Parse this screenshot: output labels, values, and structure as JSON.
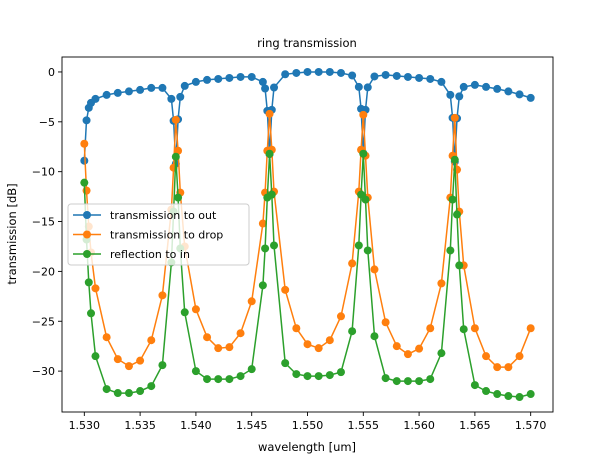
{
  "chart_data": {
    "type": "line",
    "title": "ring transmission",
    "xlabel": "wavelength [um]",
    "ylabel": "transmission [dB]",
    "xlim": [
      1.528,
      1.572
    ],
    "ylim": [
      -34.1,
      1.5
    ],
    "grid": false,
    "legend_position": "center-left",
    "markers": "circle",
    "xticks": [
      1.53,
      1.535,
      1.54,
      1.545,
      1.55,
      1.555,
      1.56,
      1.565,
      1.57
    ],
    "xtick_labels": [
      "1.530",
      "1.535",
      "1.540",
      "1.545",
      "1.550",
      "1.555",
      "1.560",
      "1.565",
      "1.570"
    ],
    "yticks": [
      0,
      -5,
      -10,
      -15,
      -20,
      -25,
      -30
    ],
    "ytick_labels": [
      "0",
      "−5",
      "−10",
      "−15",
      "−20",
      "−25",
      "−30"
    ],
    "x": [
      1.53,
      1.5302,
      1.5304,
      1.5306,
      1.531,
      1.532,
      1.533,
      1.534,
      1.535,
      1.536,
      1.537,
      1.5378,
      1.538,
      1.5382,
      1.5384,
      1.5386,
      1.539,
      1.54,
      1.541,
      1.542,
      1.543,
      1.544,
      1.545,
      1.546,
      1.5462,
      1.5464,
      1.5466,
      1.5468,
      1.547,
      1.548,
      1.549,
      1.55,
      1.551,
      1.552,
      1.553,
      1.554,
      1.5546,
      1.5548,
      1.555,
      1.5552,
      1.5554,
      1.556,
      1.557,
      1.558,
      1.559,
      1.56,
      1.561,
      1.562,
      1.5628,
      1.563,
      1.5632,
      1.5634,
      1.5636,
      1.564,
      1.565,
      1.566,
      1.567,
      1.568,
      1.569,
      1.57
    ],
    "series": [
      {
        "name": "transmission to out",
        "color": "#1f77b4",
        "values": [
          -8.9,
          -4.85,
          -3.6,
          -3.1,
          -2.7,
          -2.3,
          -2.1,
          -1.95,
          -1.8,
          -1.6,
          -1.6,
          -2.7,
          -4.9,
          -9.2,
          -4.75,
          -2.5,
          -1.4,
          -1.0,
          -0.8,
          -0.7,
          -0.6,
          -0.5,
          -0.5,
          -1.0,
          -1.66,
          -3.9,
          -8.25,
          -3.8,
          -1.56,
          -0.23,
          -0.1,
          0,
          0,
          0,
          -0.1,
          -0.35,
          -1.5,
          -3.7,
          -8.15,
          -3.8,
          -1.54,
          -0.45,
          -0.3,
          -0.4,
          -0.5,
          -0.6,
          -0.7,
          -1.0,
          -2.3,
          -4.6,
          -9.0,
          -4.65,
          -2.45,
          -1.5,
          -1.3,
          -1.5,
          -1.7,
          -1.95,
          -2.25,
          -2.6
        ]
      },
      {
        "name": "transmission to drop",
        "color": "#ff7f0e",
        "values": [
          -7.2,
          -11.9,
          -15.5,
          -18.1,
          -21.7,
          -26.6,
          -28.8,
          -29.5,
          -28.95,
          -26.9,
          -22.4,
          -13.8,
          -9.6,
          -4.8,
          -7.9,
          -12.1,
          -17.5,
          -23.8,
          -26.6,
          -27.7,
          -27.6,
          -26.2,
          -23.0,
          -15.2,
          -12.1,
          -7.9,
          -4.2,
          -7.8,
          -12.0,
          -21.85,
          -25.7,
          -27.3,
          -27.7,
          -26.9,
          -24.5,
          -19.2,
          -12.0,
          -7.8,
          -4.3,
          -8.4,
          -12.6,
          -19.8,
          -25.1,
          -27.5,
          -28.3,
          -27.75,
          -25.7,
          -21.2,
          -12.6,
          -8.4,
          -4.6,
          -9.8,
          -14.0,
          -19.4,
          -25.7,
          -28.5,
          -29.6,
          -29.6,
          -28.5,
          -25.7
        ]
      },
      {
        "name": "reflection to in",
        "color": "#2ca02c",
        "values": [
          -11.1,
          -16.8,
          -21.1,
          -24.2,
          -28.5,
          -31.8,
          -32.2,
          -32.2,
          -32.0,
          -31.5,
          -29.4,
          -19.1,
          -14.0,
          -8.5,
          -12.6,
          -17.7,
          -24.1,
          -30.0,
          -30.8,
          -30.8,
          -30.8,
          -30.5,
          -29.8,
          -21.4,
          -17.7,
          -12.6,
          -8.2,
          -12.3,
          -17.4,
          -29.2,
          -30.3,
          -30.5,
          -30.5,
          -30.4,
          -30.1,
          -26.0,
          -17.4,
          -12.3,
          -8.2,
          -12.8,
          -17.9,
          -26.5,
          -30.7,
          -31.0,
          -31.0,
          -31.0,
          -30.8,
          -28.2,
          -17.9,
          -12.8,
          -8.8,
          -14.3,
          -19.4,
          -25.8,
          -31.4,
          -32.0,
          -32.3,
          -32.5,
          -32.6,
          -32.3
        ]
      }
    ]
  }
}
